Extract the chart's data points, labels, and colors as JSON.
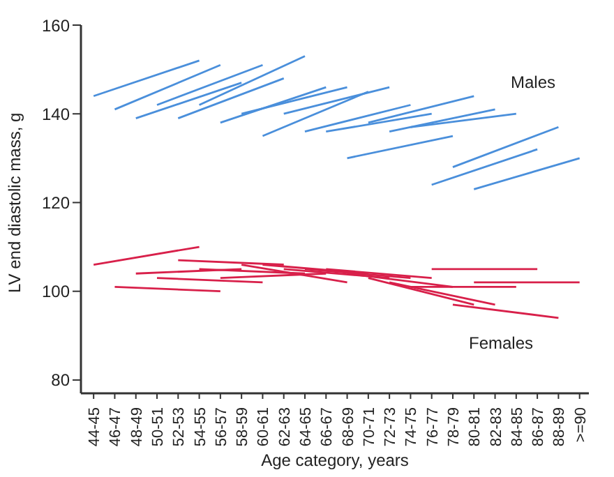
{
  "chart_data": {
    "type": "line",
    "xlabel": "Age category, years",
    "ylabel": "LV end diastolic mass, g",
    "categories": [
      "44-45",
      "46-47",
      "48-49",
      "50-51",
      "52-53",
      "54-55",
      "56-57",
      "58-59",
      "60-61",
      "62-63",
      "64-65",
      "66-67",
      "68-69",
      "70-71",
      "72-73",
      "74-75",
      "76-77",
      "78-79",
      "80-81",
      "82-83",
      "84-85",
      "86-87",
      "88-89",
      ">=90"
    ],
    "ylim": [
      77,
      160
    ],
    "yticks": [
      80,
      100,
      120,
      140,
      160
    ],
    "grid": false,
    "legend": false,
    "marker": "none",
    "line_style": "solid",
    "annotations": [
      "Males",
      "Females"
    ],
    "series": [
      {
        "color": "#4a8fdb",
        "x": [
          "44-45",
          "54-55"
        ],
        "values": [
          144,
          152
        ]
      },
      {
        "color": "#4a8fdb",
        "x": [
          "46-47",
          "56-57"
        ],
        "values": [
          141,
          151
        ]
      },
      {
        "color": "#4a8fdb",
        "x": [
          "48-49",
          "58-59"
        ],
        "values": [
          139,
          147
        ]
      },
      {
        "color": "#4a8fdb",
        "x": [
          "50-51",
          "60-61"
        ],
        "values": [
          142,
          151
        ]
      },
      {
        "color": "#4a8fdb",
        "x": [
          "52-53",
          "62-63"
        ],
        "values": [
          139,
          148
        ]
      },
      {
        "color": "#4a8fdb",
        "x": [
          "54-55",
          "64-65"
        ],
        "values": [
          142,
          153
        ]
      },
      {
        "color": "#4a8fdb",
        "x": [
          "56-57",
          "66-67"
        ],
        "values": [
          138,
          146
        ]
      },
      {
        "color": "#4a8fdb",
        "x": [
          "58-59",
          "68-69"
        ],
        "values": [
          140,
          146
        ]
      },
      {
        "color": "#4a8fdb",
        "x": [
          "60-61",
          "70-71"
        ],
        "values": [
          135,
          145
        ]
      },
      {
        "color": "#4a8fdb",
        "x": [
          "62-63",
          "72-73"
        ],
        "values": [
          140,
          146
        ]
      },
      {
        "color": "#4a8fdb",
        "x": [
          "64-65",
          "74-75"
        ],
        "values": [
          136,
          142
        ]
      },
      {
        "color": "#4a8fdb",
        "x": [
          "66-67",
          "76-77"
        ],
        "values": [
          136,
          140
        ]
      },
      {
        "color": "#4a8fdb",
        "x": [
          "68-69",
          "78-79"
        ],
        "values": [
          130,
          135
        ]
      },
      {
        "color": "#4a8fdb",
        "x": [
          "70-71",
          "80-81"
        ],
        "values": [
          138,
          144
        ]
      },
      {
        "color": "#4a8fdb",
        "x": [
          "72-73",
          "82-83"
        ],
        "values": [
          136,
          141
        ]
      },
      {
        "color": "#4a8fdb",
        "x": [
          "74-75",
          "84-85"
        ],
        "values": [
          137,
          140
        ]
      },
      {
        "color": "#4a8fdb",
        "x": [
          "76-77",
          "86-87"
        ],
        "values": [
          124,
          132
        ]
      },
      {
        "color": "#4a8fdb",
        "x": [
          "78-79",
          "88-89"
        ],
        "values": [
          128,
          137
        ]
      },
      {
        "color": "#4a8fdb",
        "x": [
          "80-81",
          ">=90"
        ],
        "values": [
          123,
          130
        ]
      },
      {
        "color": "#d8204a",
        "x": [
          "44-45",
          "54-55"
        ],
        "values": [
          106,
          110
        ]
      },
      {
        "color": "#d8204a",
        "x": [
          "46-47",
          "56-57"
        ],
        "values": [
          101,
          100
        ]
      },
      {
        "color": "#d8204a",
        "x": [
          "48-49",
          "58-59"
        ],
        "values": [
          104,
          105
        ]
      },
      {
        "color": "#d8204a",
        "x": [
          "50-51",
          "60-61"
        ],
        "values": [
          103,
          102
        ]
      },
      {
        "color": "#d8204a",
        "x": [
          "52-53",
          "62-63"
        ],
        "values": [
          107,
          106
        ]
      },
      {
        "color": "#d8204a",
        "x": [
          "54-55",
          "64-65"
        ],
        "values": [
          105,
          104
        ]
      },
      {
        "color": "#d8204a",
        "x": [
          "56-57",
          "66-67"
        ],
        "values": [
          103,
          104
        ]
      },
      {
        "color": "#d8204a",
        "x": [
          "58-59",
          "68-69"
        ],
        "values": [
          106,
          102
        ]
      },
      {
        "color": "#d8204a",
        "x": [
          "60-61",
          "70-71"
        ],
        "values": [
          106,
          104
        ]
      },
      {
        "color": "#d8204a",
        "x": [
          "62-63",
          "72-73"
        ],
        "values": [
          105,
          103
        ]
      },
      {
        "color": "#d8204a",
        "x": [
          "64-65",
          "74-75"
        ],
        "values": [
          105,
          103
        ]
      },
      {
        "color": "#d8204a",
        "x": [
          "66-67",
          "76-77"
        ],
        "values": [
          105,
          103
        ]
      },
      {
        "color": "#d8204a",
        "x": [
          "68-69",
          "78-79"
        ],
        "values": [
          104,
          101
        ]
      },
      {
        "color": "#d8204a",
        "x": [
          "70-71",
          "80-81"
        ],
        "values": [
          103,
          97
        ]
      },
      {
        "color": "#d8204a",
        "x": [
          "72-73",
          "82-83"
        ],
        "values": [
          102,
          97
        ]
      },
      {
        "color": "#d8204a",
        "x": [
          "74-75",
          "84-85"
        ],
        "values": [
          101,
          101
        ]
      },
      {
        "color": "#d8204a",
        "x": [
          "76-77",
          "86-87"
        ],
        "values": [
          105,
          105
        ]
      },
      {
        "color": "#d8204a",
        "x": [
          "78-79",
          "88-89"
        ],
        "values": [
          97,
          94
        ]
      },
      {
        "color": "#d8204a",
        "x": [
          "80-81",
          ">=90"
        ],
        "values": [
          102,
          102
        ]
      }
    ]
  }
}
